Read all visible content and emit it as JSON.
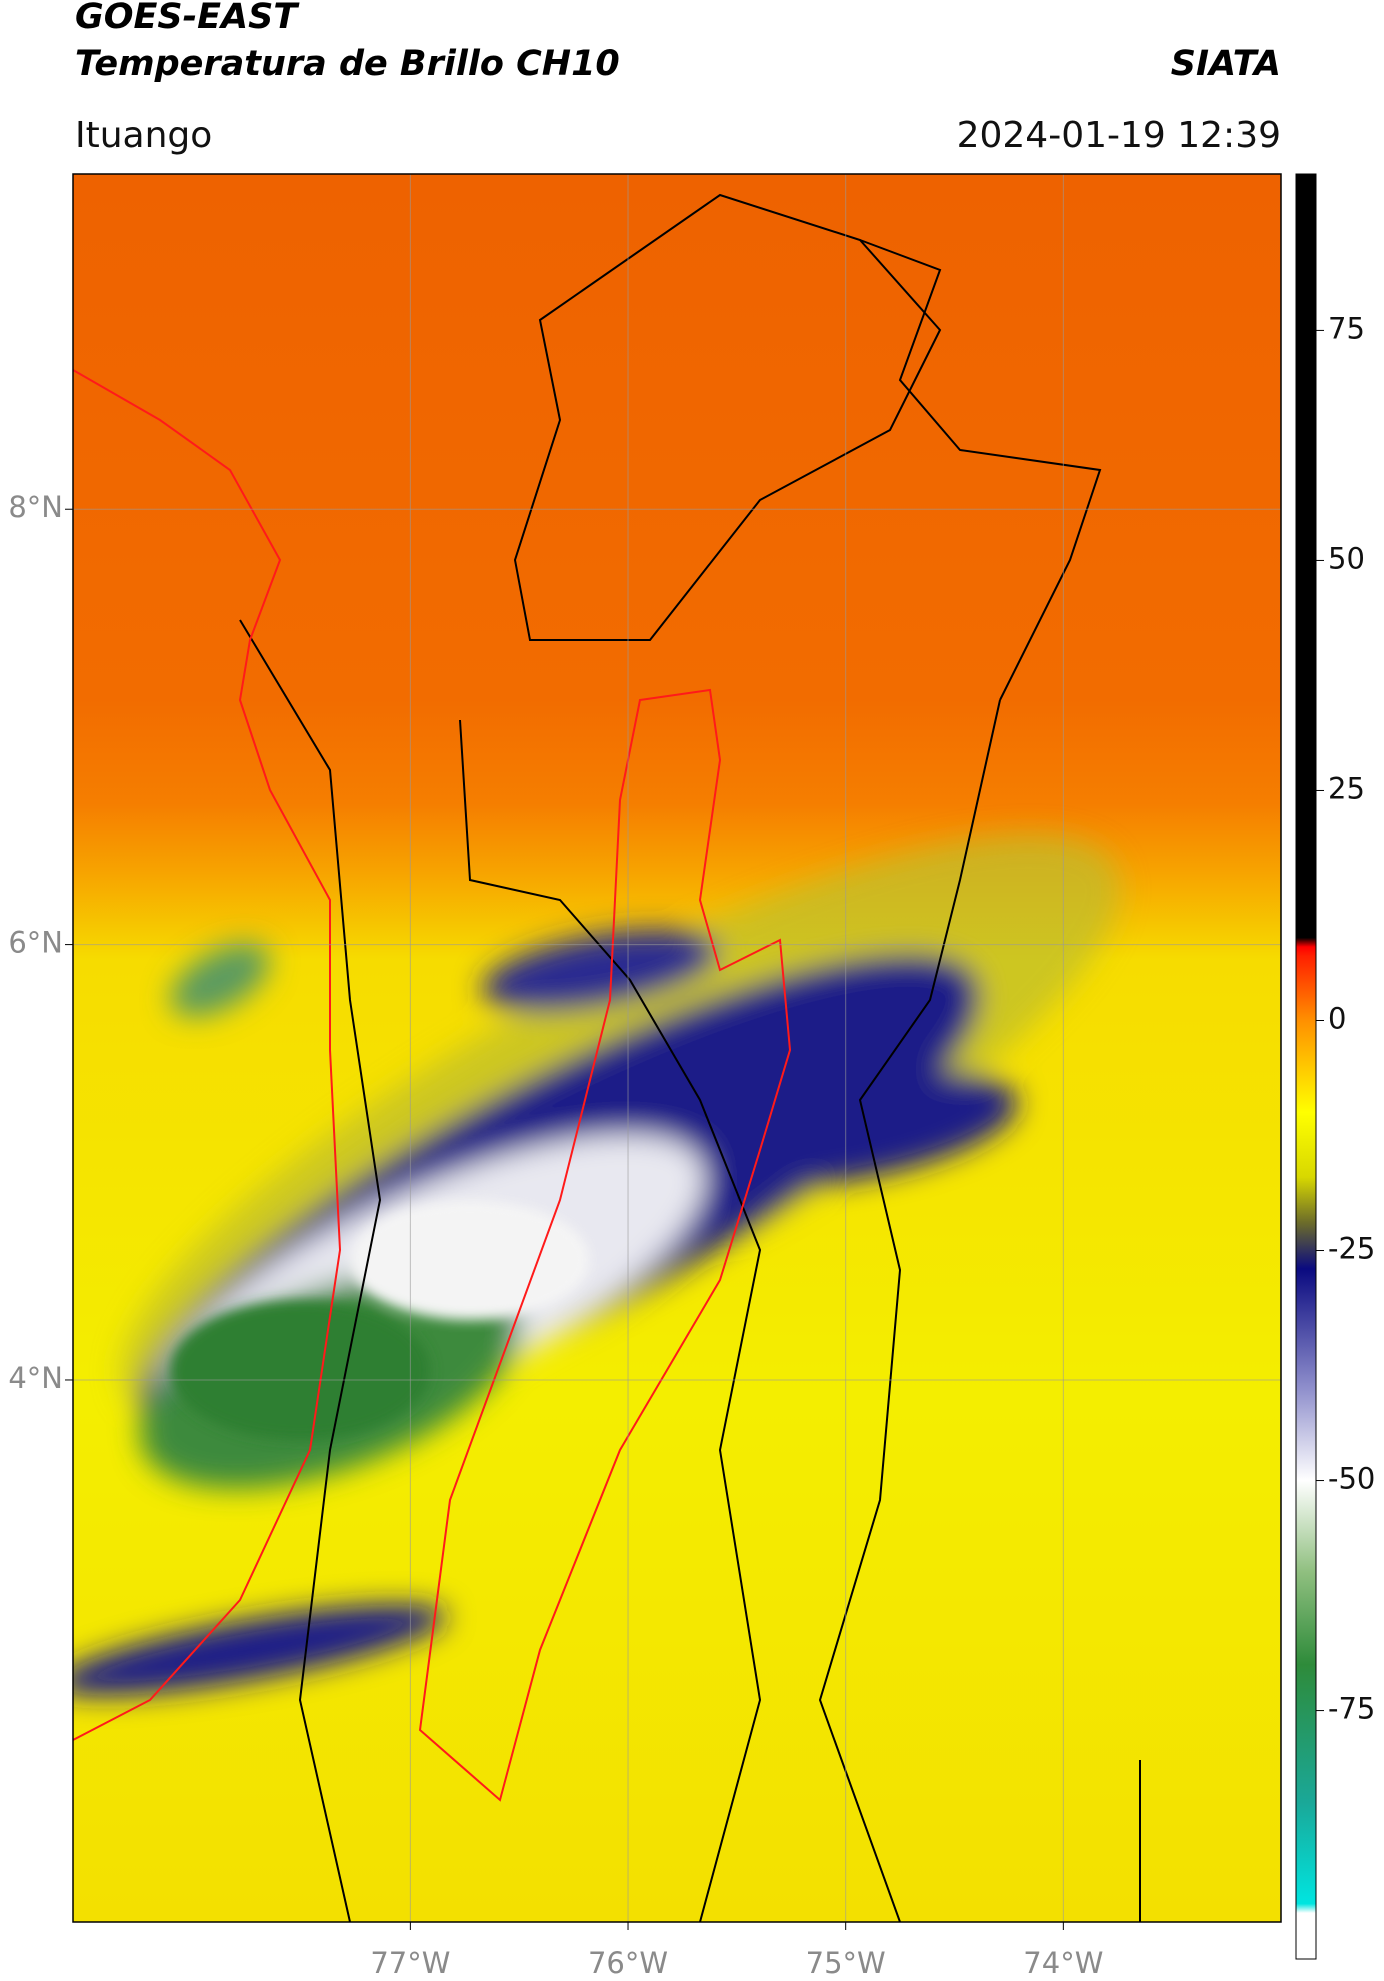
{
  "header": {
    "title": "GOES-EAST",
    "subtitle": "Temperatura de Brillo CH10",
    "source": "SIATA",
    "location": "Ituango",
    "datetime": "2024-01-19 12:39"
  },
  "chart_data": {
    "type": "map",
    "xlim": [
      -78.55,
      -73.0
    ],
    "ylim": [
      1.51,
      9.54
    ],
    "xticks": [
      {
        "value": -77,
        "label": "77°W"
      },
      {
        "value": -76,
        "label": "76°W"
      },
      {
        "value": -75,
        "label": "75°W"
      },
      {
        "value": -74,
        "label": "74°W"
      }
    ],
    "yticks": [
      {
        "value": 8,
        "label": "8°N"
      },
      {
        "value": 6,
        "label": "6°N"
      },
      {
        "value": 4,
        "label": "4°N"
      }
    ],
    "grid": true,
    "colorbar": {
      "lim": [
        -102,
        92
      ],
      "ticks": [
        75,
        50,
        25,
        0,
        -25,
        -50,
        -75
      ],
      "colorscale": [
        {
          "value": -102,
          "color": "#ffffff"
        },
        {
          "value": -97,
          "color": "#ffffff"
        },
        {
          "value": -96,
          "color": "#00e5e0"
        },
        {
          "value": -85,
          "color": "#1aa898"
        },
        {
          "value": -70,
          "color": "#2e8b3a"
        },
        {
          "value": -60,
          "color": "#8fbf7f"
        },
        {
          "value": -50,
          "color": "#ffffff"
        },
        {
          "value": -40,
          "color": "#8f8fcc"
        },
        {
          "value": -27,
          "color": "#0a0a80"
        },
        {
          "value": -22,
          "color": "#6b6b2a"
        },
        {
          "value": -17,
          "color": "#d8d800"
        },
        {
          "value": -10,
          "color": "#ffff00"
        },
        {
          "value": 0,
          "color": "#ff9000"
        },
        {
          "value": 7,
          "color": "#ff2000"
        },
        {
          "value": 8,
          "color": "#ff0000"
        },
        {
          "value": 9,
          "color": "#000000"
        },
        {
          "value": 92,
          "color": "#000000"
        }
      ]
    }
  }
}
